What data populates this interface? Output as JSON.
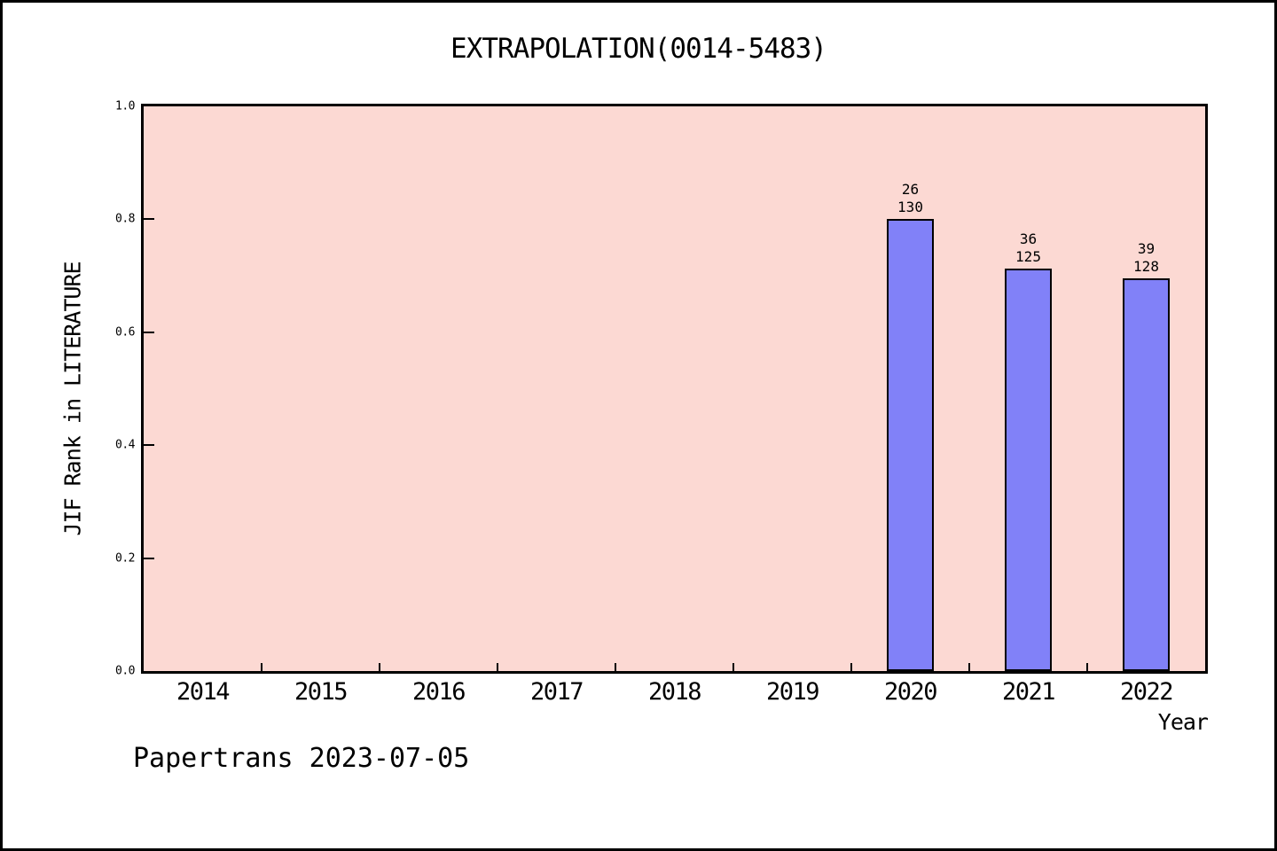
{
  "page": {
    "background": "#ffffff",
    "frame_color": "#000000"
  },
  "footer": {
    "text": "Papertrans 2023-07-05"
  },
  "chart_data": {
    "type": "bar",
    "title": "EXTRAPOLATION(0014-5483)",
    "xlabel": "Year",
    "ylabel": "JIF Rank in LITERATURE",
    "categories": [
      "2014",
      "2015",
      "2016",
      "2017",
      "2018",
      "2019",
      "2020",
      "2021",
      "2022"
    ],
    "values": [
      null,
      null,
      null,
      null,
      null,
      null,
      0.8,
      0.712,
      0.695
    ],
    "bars": [
      {
        "category": "2020",
        "rank": 26,
        "total": 130,
        "value": 0.8
      },
      {
        "category": "2021",
        "rank": 36,
        "total": 125,
        "value": 0.712
      },
      {
        "category": "2022",
        "rank": 39,
        "total": 128,
        "value": 0.695
      }
    ],
    "ylim": [
      0.0,
      1.0
    ],
    "yticks": [
      0.0,
      0.2,
      0.4,
      0.6,
      0.8,
      1.0
    ],
    "ytick_labels": [
      "0.0",
      "0.2",
      "0.4",
      "0.6",
      "0.8",
      "1.0"
    ],
    "grid": false,
    "legend": false,
    "colors": {
      "plot_background": "#fcd9d3",
      "bar_fill": "#8181f8",
      "bar_edge": "#000000",
      "axis": "#000000",
      "text": "#000000"
    }
  }
}
